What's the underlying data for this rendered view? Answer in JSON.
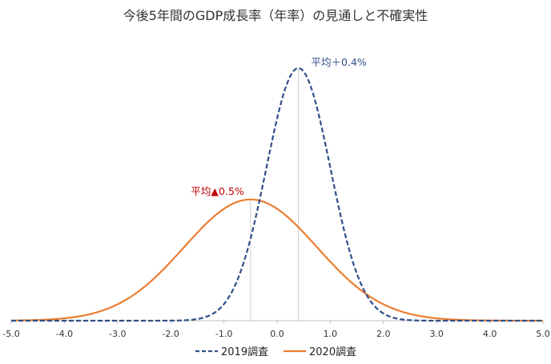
{
  "chart_data": {
    "type": "line",
    "title": "今後5年間のGDP成長率（年率）の見通しと不確実性",
    "xlim": [
      -5.0,
      5.0
    ],
    "xticks": [
      "-5.0",
      "-4.0",
      "-3.0",
      "-2.0",
      "-1.0",
      "0.0",
      "1.0",
      "2.0",
      "3.0",
      "4.0",
      "5.0"
    ],
    "legend_position": "bottom",
    "series": [
      {
        "name": "2019調査",
        "mean": 0.4,
        "sd": 0.6,
        "peak": 1.0,
        "color": "#2f4f8a",
        "dash": true,
        "annotation": "平均＋0.4%",
        "annotation_color": "#2f4f8a"
      },
      {
        "name": "2020調査",
        "mean": -0.5,
        "sd": 1.25,
        "peak": 0.48,
        "color": "#ed7d31",
        "dash": false,
        "annotation": "平均▲0.5%",
        "annotation_color": "#c00000"
      }
    ]
  }
}
